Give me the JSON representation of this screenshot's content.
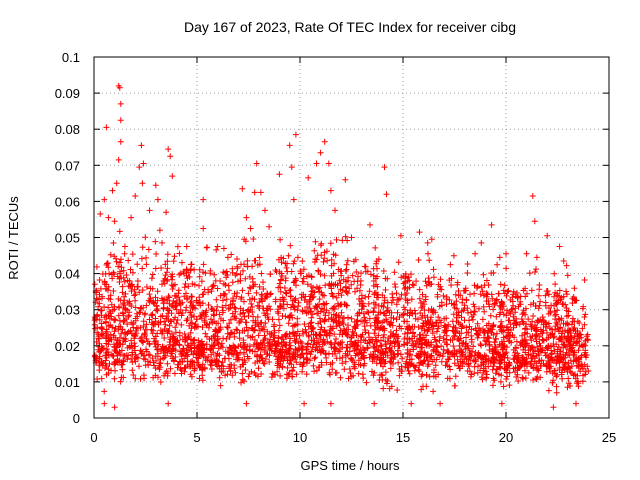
{
  "chart_data": {
    "type": "scatter",
    "title": "Day 167 of 2023, Rate Of TEC Index for receiver cibg",
    "xlabel": "GPS time / hours",
    "ylabel": "ROTI / TECUs",
    "xlim": [
      0,
      25
    ],
    "ylim": [
      0,
      0.1
    ],
    "xticks": [
      0,
      5,
      10,
      15,
      20,
      25
    ],
    "xtick_labels": [
      "0",
      "5",
      "10",
      "15",
      "20",
      "25"
    ],
    "yticks": [
      0,
      0.01,
      0.02,
      0.03,
      0.04,
      0.05,
      0.06,
      0.07,
      0.08,
      0.09,
      0.1
    ],
    "ytick_labels": [
      "0",
      "0.01",
      "0.02",
      "0.03",
      "0.04",
      "0.05",
      "0.06",
      "0.07",
      "0.08",
      "0.09",
      "0.1"
    ],
    "grid": true,
    "marker": "+",
    "color": "#ff0000",
    "series": [
      {
        "name": "ROTI",
        "band_x": [
          0,
          1,
          2,
          3,
          4,
          5,
          6,
          7,
          8,
          9,
          10,
          11,
          12,
          13,
          14,
          15,
          16,
          17,
          18,
          19,
          20,
          21,
          22,
          23,
          24
        ],
        "band_median": [
          0.018,
          0.022,
          0.022,
          0.02,
          0.02,
          0.019,
          0.019,
          0.02,
          0.021,
          0.021,
          0.021,
          0.022,
          0.021,
          0.02,
          0.02,
          0.02,
          0.019,
          0.019,
          0.018,
          0.018,
          0.018,
          0.018,
          0.017,
          0.017,
          0.016
        ],
        "band_low": [
          0.006,
          0.006,
          0.007,
          0.007,
          0.007,
          0.007,
          0.006,
          0.006,
          0.006,
          0.006,
          0.006,
          0.006,
          0.006,
          0.006,
          0.006,
          0.006,
          0.006,
          0.006,
          0.006,
          0.006,
          0.006,
          0.006,
          0.006,
          0.005,
          0.006
        ],
        "band_high": [
          0.032,
          0.04,
          0.04,
          0.038,
          0.038,
          0.036,
          0.035,
          0.037,
          0.039,
          0.039,
          0.04,
          0.041,
          0.039,
          0.037,
          0.036,
          0.036,
          0.034,
          0.034,
          0.033,
          0.032,
          0.032,
          0.032,
          0.031,
          0.031,
          0.028
        ],
        "peaks": [
          [
            0.3,
            0.0565
          ],
          [
            0.5,
            0.0605
          ],
          [
            0.6,
            0.0805
          ],
          [
            0.7,
            0.0555
          ],
          [
            0.9,
            0.063
          ],
          [
            1.0,
            0.0545
          ],
          [
            1.2,
            0.092
          ],
          [
            1.25,
            0.0915
          ],
          [
            1.3,
            0.087
          ],
          [
            1.3,
            0.0825
          ],
          [
            1.3,
            0.0765
          ],
          [
            1.2,
            0.0715
          ],
          [
            1.1,
            0.065
          ],
          [
            1.5,
            0.0475
          ],
          [
            1.8,
            0.0555
          ],
          [
            2.0,
            0.0615
          ],
          [
            2.2,
            0.0695
          ],
          [
            2.3,
            0.0755
          ],
          [
            2.4,
            0.0705
          ],
          [
            2.35,
            0.065
          ],
          [
            2.7,
            0.0575
          ],
          [
            3.0,
            0.0645
          ],
          [
            3.1,
            0.0605
          ],
          [
            3.2,
            0.052
          ],
          [
            3.3,
            0.0485
          ],
          [
            3.6,
            0.0745
          ],
          [
            3.7,
            0.0725
          ],
          [
            3.8,
            0.067
          ],
          [
            3.5,
            0.057
          ],
          [
            4.5,
            0.0475
          ],
          [
            5.3,
            0.0605
          ],
          [
            5.3,
            0.0525
          ],
          [
            6.0,
            0.0475
          ],
          [
            6.5,
            0.0445
          ],
          [
            7.2,
            0.0635
          ],
          [
            7.4,
            0.0555
          ],
          [
            7.6,
            0.0525
          ],
          [
            7.8,
            0.0625
          ],
          [
            7.9,
            0.0705
          ],
          [
            8.1,
            0.0625
          ],
          [
            8.3,
            0.0575
          ],
          [
            8.5,
            0.053
          ],
          [
            9.0,
            0.0675
          ],
          [
            9.5,
            0.0755
          ],
          [
            9.6,
            0.0695
          ],
          [
            9.8,
            0.0785
          ],
          [
            9.7,
            0.0605
          ],
          [
            9.9,
            0.0445
          ],
          [
            10.4,
            0.0665
          ],
          [
            10.8,
            0.0705
          ],
          [
            11.0,
            0.0735
          ],
          [
            11.2,
            0.0765
          ],
          [
            11.4,
            0.0705
          ],
          [
            11.5,
            0.063
          ],
          [
            11.7,
            0.0575
          ],
          [
            12.2,
            0.066
          ],
          [
            12.5,
            0.05
          ],
          [
            13.4,
            0.0535
          ],
          [
            14.1,
            0.0695
          ],
          [
            14.2,
            0.062
          ],
          [
            14.9,
            0.0505
          ],
          [
            15.8,
            0.0515
          ],
          [
            16.2,
            0.0485
          ],
          [
            16.4,
            0.0495
          ],
          [
            17.3,
            0.0425
          ],
          [
            18.5,
            0.0455
          ],
          [
            18.8,
            0.0485
          ],
          [
            19.3,
            0.0535
          ],
          [
            19.7,
            0.0445
          ],
          [
            20.0,
            0.0455
          ],
          [
            21.0,
            0.0455
          ],
          [
            21.3,
            0.0615
          ],
          [
            21.4,
            0.0545
          ],
          [
            21.5,
            0.0445
          ],
          [
            22.0,
            0.0505
          ],
          [
            22.6,
            0.0475
          ],
          [
            22.8,
            0.0435
          ],
          [
            23.0,
            0.0395
          ]
        ],
        "lows": [
          [
            0.5,
            0.004
          ],
          [
            1.0,
            0.003
          ],
          [
            3.6,
            0.004
          ],
          [
            7.4,
            0.004
          ],
          [
            10.2,
            0.004
          ],
          [
            11.5,
            0.004
          ],
          [
            13.6,
            0.004
          ],
          [
            15.4,
            0.004
          ],
          [
            16.8,
            0.004
          ],
          [
            19.8,
            0.004
          ],
          [
            22.3,
            0.003
          ],
          [
            23.4,
            0.004
          ]
        ]
      }
    ]
  }
}
